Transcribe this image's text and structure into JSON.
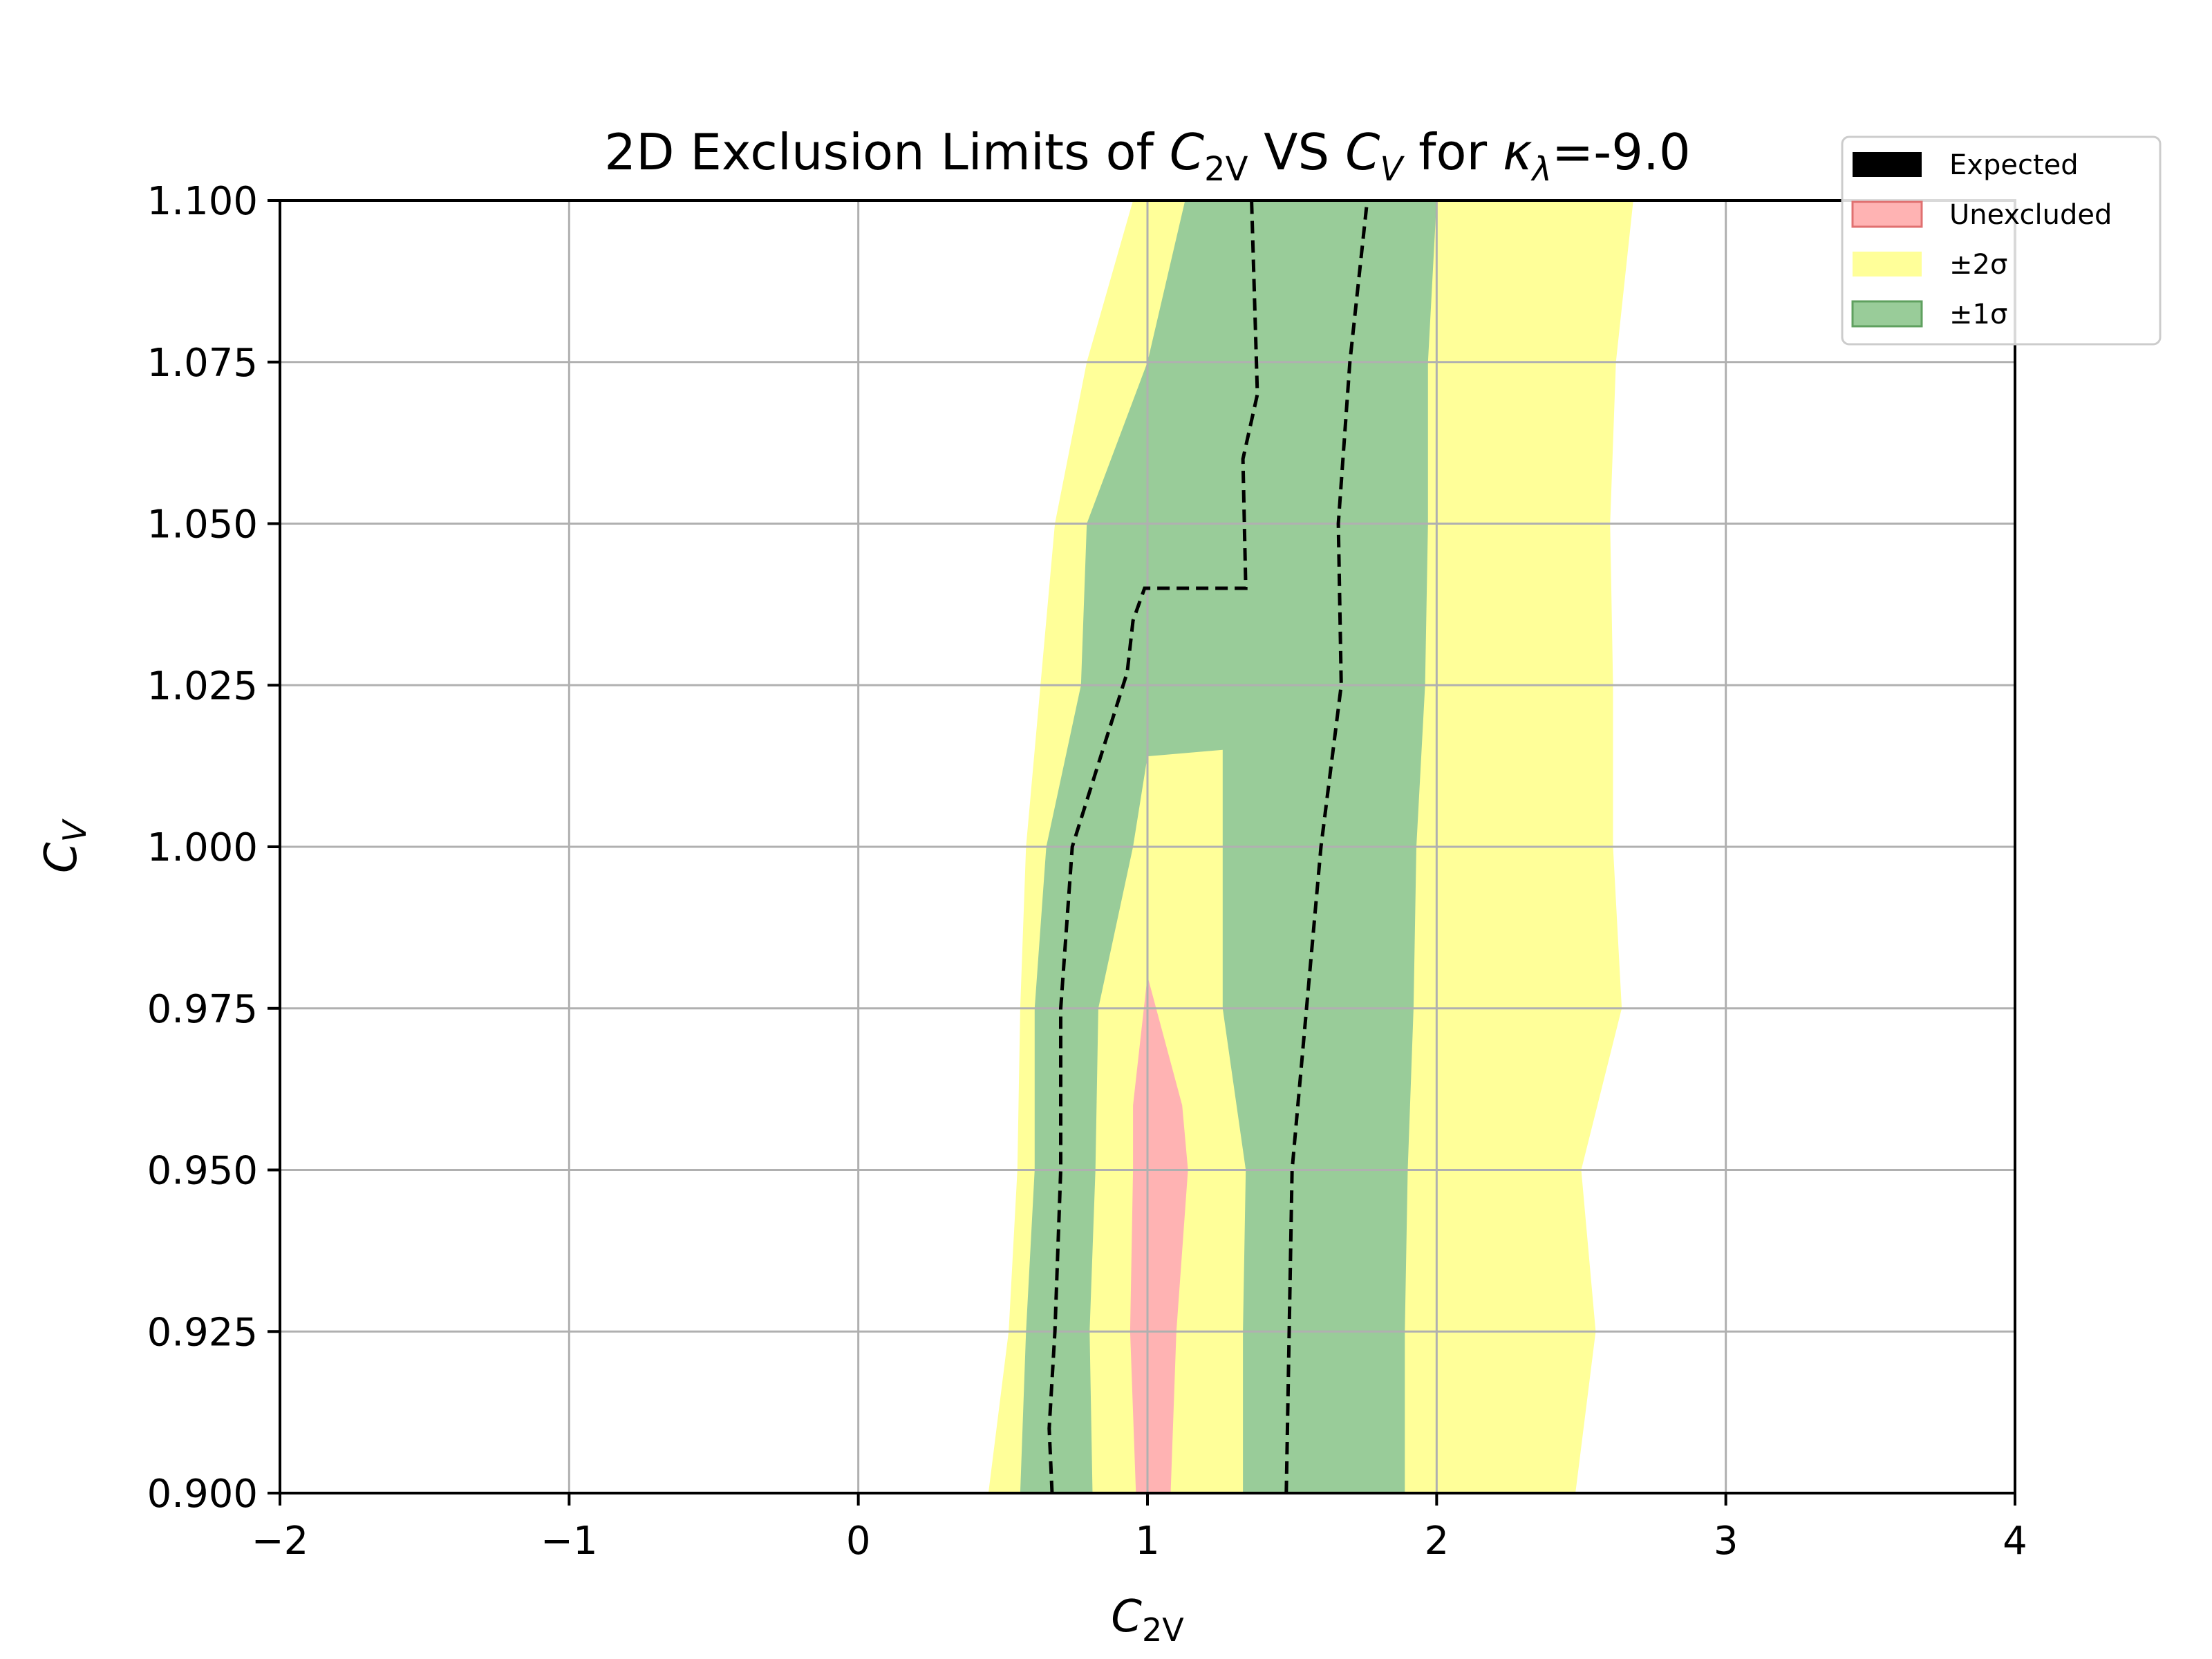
{
  "chart_data": {
    "type": "contour",
    "title": {
      "pre": "2D Exclusion Limits of ",
      "a_main": "C",
      "a_sub": "2V",
      "mid": " VS ",
      "b_main": "C",
      "b_sub": "V",
      "post_pre": " for ",
      "kappa": "κ",
      "kappa_sub": "λ",
      "post": "=-9.0"
    },
    "xlabel": {
      "main": "C",
      "sub": "2V"
    },
    "ylabel": {
      "main": "C",
      "sub": "V"
    },
    "xlim": [
      -2,
      4
    ],
    "ylim": [
      0.9,
      1.1
    ],
    "xticks": [
      -2,
      -1,
      0,
      1,
      2,
      3,
      4
    ],
    "xtick_labels": [
      "−2",
      "−1",
      "0",
      "1",
      "2",
      "3",
      "4"
    ],
    "yticks": [
      0.9,
      0.925,
      0.95,
      0.975,
      1.0,
      1.025,
      1.05,
      1.075,
      1.1
    ],
    "ytick_labels": [
      "0.900",
      "0.925",
      "0.950",
      "0.975",
      "1.000",
      "1.025",
      "1.050",
      "1.075",
      "1.100"
    ],
    "grid": true,
    "legend_position": "top-right",
    "legend": [
      {
        "key": "expected",
        "label": "Expected",
        "color": "#000000"
      },
      {
        "key": "unexcluded",
        "label": "Unexcluded",
        "color": "#ffb3b3"
      },
      {
        "key": "two_sigma",
        "label": "±2σ",
        "color": "#ffff99"
      },
      {
        "key": "one_sigma",
        "label": "±1σ",
        "color": "#99cc99"
      }
    ],
    "colors": {
      "two_sigma": "#ffff99",
      "one_sigma": "#99cc99",
      "unexcluded": "#ffb3b3",
      "expected": "#000000",
      "grid": "#b0b0b0"
    },
    "regions": {
      "two_sigma": [
        [
          0.45,
          0.9
        ],
        [
          0.52,
          0.925
        ],
        [
          0.55,
          0.95
        ],
        [
          0.56,
          0.975
        ],
        [
          0.58,
          1.0
        ],
        [
          0.63,
          1.025
        ],
        [
          0.68,
          1.05
        ],
        [
          0.79,
          1.075
        ],
        [
          0.95,
          1.1
        ],
        [
          2.68,
          1.1
        ],
        [
          2.62,
          1.075
        ],
        [
          2.6,
          1.05
        ],
        [
          2.61,
          1.025
        ],
        [
          2.61,
          1.0
        ],
        [
          2.64,
          0.975
        ],
        [
          2.5,
          0.95
        ],
        [
          2.55,
          0.925
        ],
        [
          2.48,
          0.9
        ]
      ],
      "one_sigma": [
        [
          0.56,
          0.9
        ],
        [
          0.58,
          0.925
        ],
        [
          0.61,
          0.95
        ],
        [
          0.61,
          0.975
        ],
        [
          0.65,
          1.0
        ],
        [
          0.77,
          1.025
        ],
        [
          0.79,
          1.05
        ],
        [
          1.0,
          1.075
        ],
        [
          1.13,
          1.1
        ],
        [
          2.0,
          1.1
        ],
        [
          1.97,
          1.075
        ],
        [
          1.97,
          1.05
        ],
        [
          1.96,
          1.025
        ],
        [
          1.93,
          1.0
        ],
        [
          1.92,
          0.975
        ],
        [
          1.9,
          0.95
        ],
        [
          1.89,
          0.925
        ],
        [
          1.89,
          0.9
        ]
      ],
      "yellow_inner": [
        [
          0.81,
          0.9
        ],
        [
          0.8,
          0.925
        ],
        [
          0.82,
          0.95
        ],
        [
          0.83,
          0.975
        ],
        [
          0.95,
          1.0
        ],
        [
          1.0,
          1.014
        ],
        [
          1.26,
          1.015
        ],
        [
          1.26,
          0.975
        ],
        [
          1.34,
          0.95
        ],
        [
          1.33,
          0.925
        ],
        [
          1.33,
          0.9
        ]
      ],
      "unexcluded": [
        [
          0.96,
          0.9
        ],
        [
          0.94,
          0.925
        ],
        [
          0.95,
          0.95
        ],
        [
          0.95,
          0.96
        ],
        [
          1.0,
          0.98
        ],
        [
          1.12,
          0.96
        ],
        [
          1.14,
          0.95
        ],
        [
          1.1,
          0.925
        ],
        [
          1.08,
          0.9
        ]
      ],
      "expected_left": [
        [
          0.67,
          0.9
        ],
        [
          0.66,
          0.91
        ],
        [
          0.68,
          0.925
        ],
        [
          0.7,
          0.95
        ],
        [
          0.7,
          0.975
        ],
        [
          0.74,
          1.0
        ],
        [
          0.93,
          1.027
        ],
        [
          0.95,
          1.035
        ],
        [
          0.99,
          1.04
        ],
        [
          1.34,
          1.04
        ],
        [
          1.33,
          1.06
        ],
        [
          1.38,
          1.07
        ],
        [
          1.36,
          1.1
        ]
      ],
      "expected_right": [
        [
          1.48,
          0.9
        ],
        [
          1.49,
          0.925
        ],
        [
          1.5,
          0.95
        ],
        [
          1.55,
          0.975
        ],
        [
          1.6,
          1.0
        ],
        [
          1.67,
          1.025
        ],
        [
          1.66,
          1.05
        ],
        [
          1.7,
          1.075
        ],
        [
          1.76,
          1.1
        ]
      ]
    }
  }
}
